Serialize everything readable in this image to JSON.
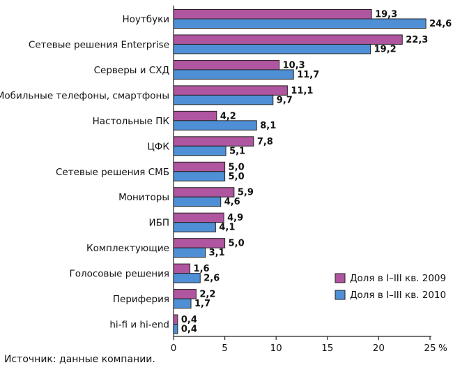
{
  "chart_data": {
    "type": "bar",
    "orientation": "horizontal",
    "categories": [
      "Ноутбуки",
      "Сетевые решения Enterprise",
      "Серверы и СХД",
      "Мобильные телефоны, смартфоны",
      "Настольные ПК",
      "ЦФК",
      "Сетевые решения СМБ",
      "Мониторы",
      "ИБП",
      "Комплектующие",
      "Голосовые решения",
      "Периферия",
      "hi-fi и hi-end"
    ],
    "series": [
      {
        "name": "Доля в I–III кв. 2009",
        "color": "#b0559f",
        "values": [
          19.3,
          22.3,
          10.3,
          11.1,
          4.2,
          7.8,
          5.0,
          5.9,
          4.9,
          5.0,
          1.6,
          2.2,
          0.4
        ],
        "labels": [
          "19,3",
          "22,3",
          "10,3",
          "11,1",
          "4,2",
          "7,8",
          "5,0",
          "5,9",
          "4,9",
          "5,0",
          "1,6",
          "2,2",
          "0,4"
        ]
      },
      {
        "name": "Доля в I–III кв. 2010",
        "color": "#4f8fd6",
        "values": [
          24.6,
          19.2,
          11.7,
          9.7,
          8.1,
          5.1,
          5.0,
          4.6,
          4.1,
          3.1,
          2.6,
          1.7,
          0.4
        ],
        "labels": [
          "24,6",
          "19,2",
          "11,7",
          "9,7",
          "8,1",
          "5,1",
          "5,0",
          "4,6",
          "4,1",
          "3,1",
          "2,6",
          "1,7",
          "0,4"
        ]
      }
    ],
    "xlim": [
      0,
      25
    ],
    "xticks": [
      0,
      5,
      10,
      15,
      20,
      25
    ],
    "xunit": "%",
    "legend": "bottom-right",
    "grid": false
  },
  "source": "Источник: данные компании."
}
